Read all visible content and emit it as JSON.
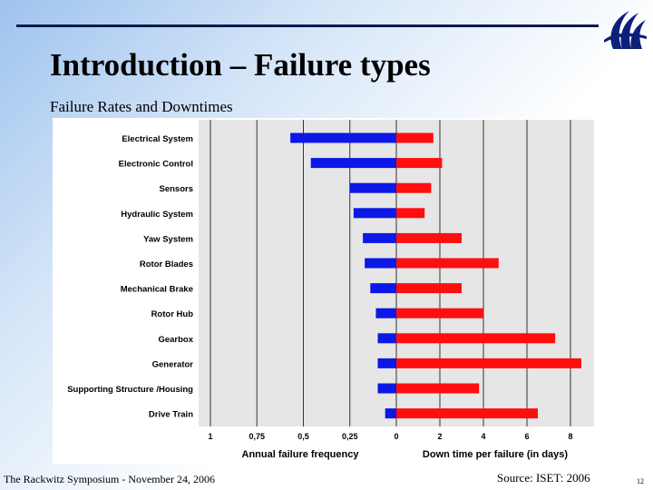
{
  "slide": {
    "title": "Introduction – Failure types",
    "subtitle": "Failure Rates and Downtimes",
    "footer_left": "The Rackwitz Symposium - November 24,  2006",
    "footer_right": "Source: ISET: 2006",
    "page_number": "12",
    "logo_icon": "swoosh-logo-icon"
  },
  "colors": {
    "failure_bar": "#0b18e6",
    "downtime_bar": "#ff0e0e",
    "plot_bg": "#e6e6e6",
    "rule": "#0a1a4a"
  },
  "chart_data": {
    "type": "bar",
    "orientation": "horizontal",
    "categories": [
      "Electrical System",
      "Electronic Control",
      "Sensors",
      "Hydraulic System",
      "Yaw System",
      "Rotor Blades",
      "Mechanical Brake",
      "Rotor Hub",
      "Gearbox",
      "Generator",
      "Supporting Structure /Housing",
      "Drive Train"
    ],
    "left_panel": {
      "xlabel": "Annual failure frequency",
      "ticks": [
        "1",
        "0,75",
        "0,5",
        "0,25",
        "0"
      ],
      "xlim": [
        1,
        0
      ],
      "values": [
        0.57,
        0.46,
        0.25,
        0.23,
        0.18,
        0.17,
        0.14,
        0.11,
        0.1,
        0.1,
        0.1,
        0.06
      ]
    },
    "right_panel": {
      "xlabel": "Down time per failure (in days)",
      "ticks": [
        "2",
        "4",
        "6",
        "8"
      ],
      "xlim": [
        0,
        10
      ],
      "values": [
        1.7,
        2.1,
        1.6,
        1.3,
        3.0,
        4.7,
        3.0,
        4.0,
        7.3,
        8.5,
        3.8,
        6.5
      ]
    },
    "grid": true
  }
}
